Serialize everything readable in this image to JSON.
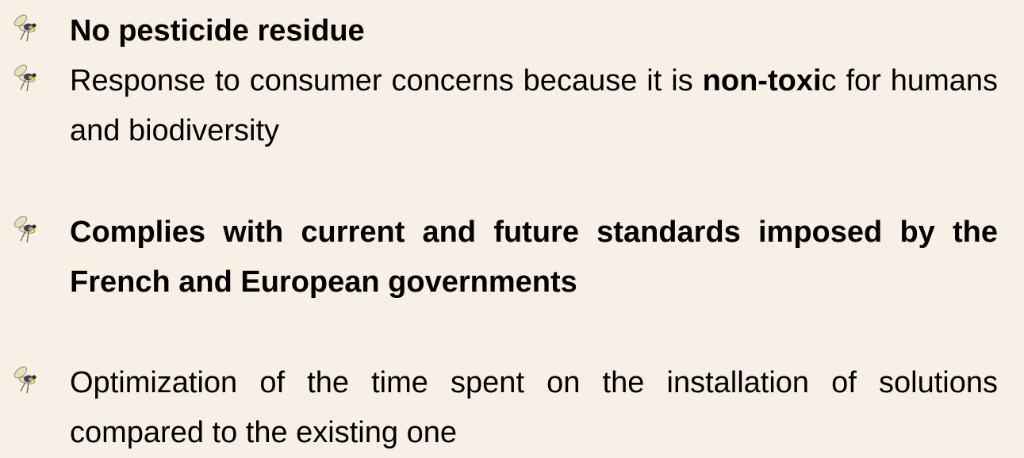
{
  "bullets": [
    {
      "segments": [
        {
          "text": "No pesticide residue",
          "bold": true
        }
      ]
    },
    {
      "segments": [
        {
          "text": "Response to consumer concerns because it is ",
          "bold": false
        },
        {
          "text": "non-toxi",
          "bold": true
        },
        {
          "text": "c for humans and biodiversity",
          "bold": false
        }
      ]
    },
    {
      "segments": [
        {
          "text": "Complies with current and future standards imposed by the French and European governments",
          "bold": true
        }
      ]
    },
    {
      "segments": [
        {
          "text": "Optimization of the time spent on the installation of solutions compared to the existing one",
          "bold": false
        }
      ]
    }
  ]
}
